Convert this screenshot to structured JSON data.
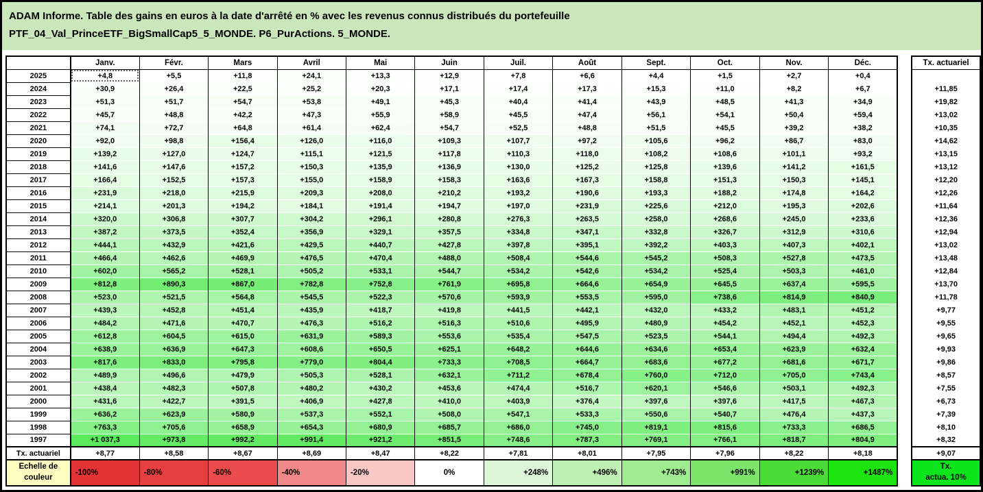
{
  "title": {
    "line1": "ADAM Informe. Table des gains en euros à la date d'arrêté en % avec les revenus connus distribués du portefeuille",
    "line2": "PTF_04_Val_PrinceETF_BigSmallCap5_5_MONDE. P6_PurActions. 5_MONDE."
  },
  "table": {
    "corner_label": "",
    "tx_header": "Tx. actuariel",
    "tx_row_label": "Tx. actuariel"
  },
  "scale": {
    "label": "Echelle de couleur",
    "cells": [
      {
        "label": "-100%",
        "color": "#E23434",
        "align": "left"
      },
      {
        "label": "-80%",
        "color": "#E63F3F",
        "align": "left"
      },
      {
        "label": "-60%",
        "color": "#EA4B4B",
        "align": "left"
      },
      {
        "label": "-40%",
        "color": "#F28989",
        "align": "left"
      },
      {
        "label": "-20%",
        "color": "#F9C6C6",
        "align": "left"
      },
      {
        "label": "0%",
        "color": "#FFFFFF",
        "align": "center"
      },
      {
        "label": "+248%",
        "color": "#DDF7D8",
        "align": "right"
      },
      {
        "label": "+496%",
        "color": "#BFF1B4",
        "align": "right"
      },
      {
        "label": "+743%",
        "color": "#9FEB90",
        "align": "right"
      },
      {
        "label": "+991%",
        "color": "#7CE46A",
        "align": "right"
      },
      {
        "label": "+1239%",
        "color": "#4CDC37",
        "align": "right"
      },
      {
        "label": "+1487%",
        "color": "#1BE40E",
        "align": "right"
      }
    ],
    "tx_cell": {
      "lines": [
        "Tx.",
        "actua. 10%"
      ],
      "color": "#0CE41C"
    }
  },
  "colors": {
    "title_bg": "#C9E7BA",
    "scale_label_bg": "#FFFCC2",
    "heat_max_green": "#14E114",
    "grid_line": "#000000"
  },
  "chart_data": {
    "type": "heatmap",
    "title": "Table des gains en euros à la date d'arrêté en % avec les revenus connus distribués",
    "portfolio": "PTF_04_Val_PrinceETF_BigSmallCap5_5_MONDE. P6_PurActions. 5_MONDE",
    "columns": [
      "Janv.",
      "Févr.",
      "Mars",
      "Avril",
      "Mai",
      "Juin",
      "Juil.",
      "Août",
      "Sept.",
      "Oct.",
      "Nov.",
      "Déc."
    ],
    "rows": [
      "2025",
      "2024",
      "2023",
      "2022",
      "2021",
      "2020",
      "2019",
      "2018",
      "2017",
      "2016",
      "2015",
      "2014",
      "2013",
      "2012",
      "2011",
      "2010",
      "2009",
      "2008",
      "2007",
      "2006",
      "2005",
      "2004",
      "2003",
      "2002",
      "2001",
      "2000",
      "1999",
      "1998",
      "1997"
    ],
    "values": [
      [
        4.8,
        5.5,
        11.8,
        24.1,
        13.3,
        12.9,
        7.8,
        6.6,
        4.4,
        1.5,
        2.7,
        0.4
      ],
      [
        30.9,
        26.4,
        22.5,
        25.2,
        20.3,
        17.1,
        17.4,
        17.3,
        15.3,
        11.0,
        8.2,
        6.7
      ],
      [
        51.3,
        51.7,
        54.7,
        53.8,
        49.1,
        45.3,
        40.4,
        41.4,
        43.9,
        48.5,
        41.3,
        34.9
      ],
      [
        45.7,
        48.8,
        42.2,
        47.3,
        55.9,
        58.9,
        45.5,
        47.4,
        56.1,
        54.1,
        50.4,
        59.4
      ],
      [
        74.1,
        72.7,
        64.8,
        61.4,
        62.4,
        54.7,
        52.5,
        48.8,
        51.5,
        45.5,
        39.2,
        38.2
      ],
      [
        92.0,
        98.8,
        156.4,
        126.0,
        116.0,
        109.3,
        107.7,
        97.2,
        105.6,
        96.2,
        86.7,
        83.0
      ],
      [
        139.2,
        127.0,
        124.7,
        115.1,
        121.5,
        117.8,
        110.3,
        118.0,
        108.2,
        108.6,
        101.1,
        93.2
      ],
      [
        141.6,
        147.6,
        157.2,
        150.3,
        135.9,
        136.9,
        130.0,
        125.2,
        125.8,
        139.6,
        141.2,
        161.5
      ],
      [
        166.4,
        152.5,
        157.3,
        155.0,
        158.9,
        158.3,
        163.6,
        167.3,
        158.8,
        151.3,
        150.3,
        145.1
      ],
      [
        231.9,
        218.0,
        215.9,
        209.3,
        208.0,
        210.2,
        193.2,
        190.6,
        193.3,
        188.2,
        174.8,
        164.2
      ],
      [
        214.1,
        201.3,
        194.2,
        184.1,
        191.4,
        194.7,
        197.0,
        231.9,
        225.6,
        212.0,
        195.3,
        202.6
      ],
      [
        320.0,
        306.8,
        307.7,
        304.2,
        296.1,
        280.8,
        276.3,
        263.5,
        258.0,
        268.6,
        245.0,
        233.6
      ],
      [
        387.2,
        373.5,
        352.4,
        356.9,
        329.1,
        357.5,
        334.8,
        347.1,
        332.8,
        326.7,
        312.9,
        310.6
      ],
      [
        444.1,
        432.9,
        421.6,
        429.5,
        440.7,
        427.8,
        397.8,
        395.1,
        392.2,
        403.3,
        407.3,
        402.1
      ],
      [
        466.4,
        462.6,
        469.9,
        476.5,
        470.4,
        488.0,
        508.4,
        544.6,
        545.2,
        508.3,
        527.8,
        473.5
      ],
      [
        602.0,
        565.2,
        528.1,
        505.2,
        533.1,
        544.7,
        534.2,
        542.6,
        534.2,
        525.4,
        503.3,
        461.0
      ],
      [
        812.8,
        890.3,
        867.0,
        782.8,
        752.8,
        761.9,
        695.8,
        664.6,
        654.9,
        645.5,
        637.4,
        595.5
      ],
      [
        523.0,
        521.5,
        564.8,
        545.5,
        522.3,
        570.6,
        593.9,
        553.5,
        595.0,
        738.6,
        814.9,
        840.9
      ],
      [
        439.3,
        452.8,
        451.4,
        435.9,
        418.7,
        419.8,
        441.5,
        442.1,
        432.0,
        433.2,
        483.1,
        451.2
      ],
      [
        484.2,
        471.6,
        470.7,
        476.3,
        516.2,
        516.3,
        510.6,
        495.9,
        480.9,
        454.2,
        452.1,
        452.3
      ],
      [
        612.8,
        604.5,
        615.0,
        631.9,
        589.3,
        553.6,
        535.4,
        547.5,
        523.5,
        544.1,
        494.4,
        492.3
      ],
      [
        638.9,
        636.9,
        647.3,
        608.6,
        650.5,
        625.1,
        648.2,
        644.6,
        634.6,
        653.4,
        623.9,
        632.4
      ],
      [
        817.6,
        833.0,
        795.8,
        779.0,
        804.4,
        733.3,
        708.5,
        664.7,
        683.6,
        677.2,
        681.6,
        671.7
      ],
      [
        489.9,
        496.6,
        479.9,
        505.3,
        528.1,
        632.1,
        711.2,
        678.4,
        760.0,
        712.0,
        705.0,
        743.4
      ],
      [
        438.4,
        482.3,
        507.8,
        480.2,
        430.2,
        453.6,
        474.4,
        516.7,
        620.1,
        546.6,
        503.1,
        492.3
      ],
      [
        431.6,
        422.7,
        391.5,
        406.9,
        427.8,
        410.0,
        403.9,
        376.4,
        397.6,
        397.6,
        417.5,
        467.3
      ],
      [
        636.2,
        623.9,
        580.9,
        537.3,
        552.1,
        508.0,
        547.1,
        533.3,
        550.6,
        540.7,
        476.4,
        437.3
      ],
      [
        763.3,
        705.6,
        658.9,
        654.3,
        680.9,
        685.7,
        686.0,
        745.0,
        819.1,
        815.6,
        733.3,
        686.5
      ],
      [
        1037.3,
        973.8,
        992.2,
        991.4,
        921.2,
        851.5,
        748.6,
        787.3,
        769.1,
        766.1,
        818.7,
        804.9
      ]
    ],
    "tx_actuariel_by_year": [
      null,
      11.85,
      19.82,
      13.02,
      10.35,
      14.62,
      13.15,
      13.12,
      12.2,
      12.26,
      11.64,
      12.36,
      12.94,
      13.02,
      13.48,
      12.84,
      13.7,
      11.78,
      9.77,
      9.55,
      9.65,
      9.93,
      9.86,
      8.57,
      7.55,
      6.73,
      7.39,
      8.1,
      8.32
    ],
    "tx_actuariel_by_month": [
      8.77,
      8.58,
      8.67,
      8.69,
      8.47,
      8.22,
      7.81,
      8.01,
      7.95,
      7.96,
      8.22,
      8.18
    ],
    "tx_actuariel_overall": 9.07,
    "value_domain_for_color": [
      0,
      1487
    ],
    "selected_cell": {
      "row": "2025",
      "column": "Janv."
    },
    "legend_position": "bottom",
    "grid": true
  }
}
